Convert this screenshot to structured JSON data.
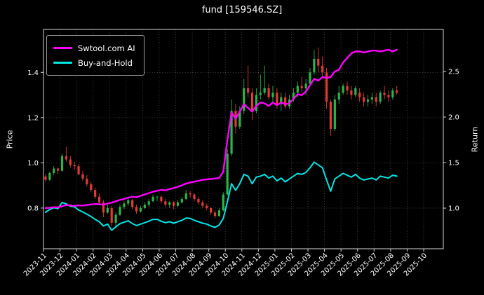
{
  "title": "fund [159546.SZ]",
  "axes": {
    "left_label": "Price",
    "right_label": "Return",
    "left_ticks": [
      "0.8",
      "1.0",
      "1.2",
      "1.4"
    ],
    "left_tick_values": [
      0.8,
      1.0,
      1.2,
      1.4
    ],
    "right_ticks": [
      "1.0",
      "1.5",
      "2.0",
      "2.5"
    ],
    "right_tick_values": [
      1.0,
      1.5,
      2.0,
      2.5
    ],
    "left_range": [
      0.62,
      1.59
    ],
    "right_range": [
      0.554,
      2.962
    ],
    "x_ticks": [
      "2023-11",
      "2023-12",
      "2024-01",
      "2024-02",
      "2024-03",
      "2024-04",
      "2024-05",
      "2024-06",
      "2024-07",
      "2024-08",
      "2024-09",
      "2024-10",
      "2024-11",
      "2024-12",
      "2025-01",
      "2025-02",
      "2025-03",
      "2025-04",
      "2025-05",
      "2025-06",
      "2025-07",
      "2025-08",
      "2025-09",
      "2025-10"
    ]
  },
  "legend": {
    "items": [
      {
        "label": "Swtool.com AI",
        "color": "#ff00ff"
      },
      {
        "label": "Buy-and-Hold",
        "color": "#00e5e5"
      }
    ]
  },
  "colors": {
    "background": "#000000",
    "text": "#ffffff",
    "grid": "#8c8c8c",
    "spine": "#d9d9d9",
    "candle_up": "#2db448",
    "candle_down": "#e23a34"
  },
  "chart_data": {
    "type": "candlestick+line",
    "title": "fund [159546.SZ]",
    "xlabel": "",
    "ylabel_left": "Price",
    "ylabel_right": "Return",
    "x_start": "2023-11",
    "x_end_data": "2025-08",
    "x_axis_end": "2025-10",
    "points_per_month": 4,
    "grid": "dotted",
    "legend_position": "upper left",
    "left_axis_range": [
      0.62,
      1.59
    ],
    "right_axis_range": [
      0.554,
      2.962
    ],
    "candles_ohlc": [
      [
        0.94,
        0.95,
        0.915,
        0.925
      ],
      [
        0.925,
        0.96,
        0.92,
        0.955
      ],
      [
        0.955,
        0.985,
        0.945,
        0.975
      ],
      [
        0.975,
        0.98,
        0.95,
        0.965
      ],
      [
        0.965,
        1.04,
        0.96,
        1.03
      ],
      [
        1.03,
        1.07,
        1.005,
        1.015
      ],
      [
        1.015,
        1.03,
        0.98,
        0.99
      ],
      [
        0.99,
        1.005,
        0.97,
        0.985
      ],
      [
        0.985,
        0.995,
        0.945,
        0.95
      ],
      [
        0.95,
        0.965,
        0.92,
        0.93
      ],
      [
        0.93,
        0.945,
        0.895,
        0.905
      ],
      [
        0.905,
        0.915,
        0.87,
        0.88
      ],
      [
        0.88,
        0.89,
        0.84,
        0.85
      ],
      [
        0.85,
        0.865,
        0.815,
        0.825
      ],
      [
        0.825,
        0.835,
        0.76,
        0.78
      ],
      [
        0.78,
        0.815,
        0.775,
        0.8
      ],
      [
        0.8,
        0.81,
        0.72,
        0.735
      ],
      [
        0.735,
        0.78,
        0.715,
        0.77
      ],
      [
        0.77,
        0.815,
        0.765,
        0.805
      ],
      [
        0.805,
        0.83,
        0.795,
        0.82
      ],
      [
        0.82,
        0.845,
        0.81,
        0.835
      ],
      [
        0.835,
        0.84,
        0.795,
        0.805
      ],
      [
        0.805,
        0.815,
        0.775,
        0.785
      ],
      [
        0.785,
        0.81,
        0.78,
        0.8
      ],
      [
        0.8,
        0.825,
        0.795,
        0.815
      ],
      [
        0.815,
        0.84,
        0.805,
        0.83
      ],
      [
        0.83,
        0.86,
        0.825,
        0.85
      ],
      [
        0.85,
        0.855,
        0.83,
        0.85
      ],
      [
        0.85,
        0.855,
        0.82,
        0.83
      ],
      [
        0.83,
        0.84,
        0.805,
        0.815
      ],
      [
        0.815,
        0.83,
        0.8,
        0.825
      ],
      [
        0.825,
        0.83,
        0.795,
        0.81
      ],
      [
        0.81,
        0.835,
        0.805,
        0.825
      ],
      [
        0.825,
        0.85,
        0.82,
        0.84
      ],
      [
        0.84,
        0.88,
        0.835,
        0.865
      ],
      [
        0.865,
        0.875,
        0.845,
        0.86
      ],
      [
        0.86,
        0.865,
        0.83,
        0.84
      ],
      [
        0.84,
        0.85,
        0.815,
        0.825
      ],
      [
        0.825,
        0.835,
        0.8,
        0.81
      ],
      [
        0.81,
        0.82,
        0.79,
        0.8
      ],
      [
        0.8,
        0.805,
        0.77,
        0.78
      ],
      [
        0.78,
        0.79,
        0.755,
        0.765
      ],
      [
        0.765,
        0.8,
        0.76,
        0.79
      ],
      [
        0.79,
        0.87,
        0.785,
        0.86
      ],
      [
        0.86,
        1.06,
        0.855,
        1.04
      ],
      [
        1.04,
        1.28,
        1.03,
        1.23
      ],
      [
        1.23,
        1.26,
        1.13,
        1.16
      ],
      [
        1.16,
        1.25,
        1.15,
        1.23
      ],
      [
        1.23,
        1.37,
        1.215,
        1.33
      ],
      [
        1.33,
        1.43,
        1.29,
        1.31
      ],
      [
        1.31,
        1.33,
        1.19,
        1.23
      ],
      [
        1.23,
        1.33,
        1.22,
        1.3
      ],
      [
        1.3,
        1.39,
        1.28,
        1.31
      ],
      [
        1.31,
        1.43,
        1.3,
        1.33
      ],
      [
        1.33,
        1.35,
        1.28,
        1.29
      ],
      [
        1.29,
        1.34,
        1.27,
        1.31
      ],
      [
        1.31,
        1.33,
        1.24,
        1.26
      ],
      [
        1.26,
        1.31,
        1.23,
        1.29
      ],
      [
        1.29,
        1.31,
        1.24,
        1.25
      ],
      [
        1.25,
        1.3,
        1.24,
        1.28
      ],
      [
        1.28,
        1.33,
        1.27,
        1.31
      ],
      [
        1.31,
        1.36,
        1.29,
        1.34
      ],
      [
        1.34,
        1.38,
        1.31,
        1.33
      ],
      [
        1.33,
        1.37,
        1.3,
        1.35
      ],
      [
        1.35,
        1.42,
        1.34,
        1.4
      ],
      [
        1.4,
        1.5,
        1.39,
        1.46
      ],
      [
        1.46,
        1.51,
        1.4,
        1.43
      ],
      [
        1.43,
        1.47,
        1.38,
        1.4
      ],
      [
        1.4,
        1.42,
        1.24,
        1.27
      ],
      [
        1.27,
        1.28,
        1.12,
        1.15
      ],
      [
        1.15,
        1.3,
        1.14,
        1.28
      ],
      [
        1.28,
        1.34,
        1.26,
        1.31
      ],
      [
        1.31,
        1.35,
        1.3,
        1.34
      ],
      [
        1.34,
        1.36,
        1.3,
        1.32
      ],
      [
        1.32,
        1.34,
        1.28,
        1.3
      ],
      [
        1.3,
        1.34,
        1.29,
        1.33
      ],
      [
        1.31,
        1.33,
        1.27,
        1.29
      ],
      [
        1.29,
        1.31,
        1.25,
        1.27
      ],
      [
        1.27,
        1.3,
        1.25,
        1.28
      ],
      [
        1.28,
        1.31,
        1.26,
        1.29
      ],
      [
        1.29,
        1.31,
        1.25,
        1.27
      ],
      [
        1.27,
        1.32,
        1.26,
        1.31
      ],
      [
        1.31,
        1.34,
        1.28,
        1.3
      ],
      [
        1.3,
        1.32,
        1.27,
        1.29
      ],
      [
        1.29,
        1.33,
        1.28,
        1.32
      ],
      [
        1.32,
        1.34,
        1.3,
        1.31
      ]
    ],
    "series": [
      {
        "name": "Swtool.com AI",
        "axis": "right",
        "color": "#ff00ff",
        "width": 2.4,
        "values": [
          1.0,
          1.005,
          1.01,
          1.008,
          1.02,
          1.035,
          1.03,
          1.025,
          1.03,
          1.028,
          1.035,
          1.04,
          1.045,
          1.042,
          1.038,
          1.05,
          1.06,
          1.075,
          1.09,
          1.1,
          1.115,
          1.125,
          1.12,
          1.135,
          1.15,
          1.165,
          1.18,
          1.19,
          1.2,
          1.195,
          1.21,
          1.22,
          1.235,
          1.25,
          1.27,
          1.28,
          1.29,
          1.3,
          1.31,
          1.315,
          1.32,
          1.325,
          1.33,
          1.4,
          1.75,
          2.05,
          1.98,
          2.06,
          2.14,
          2.1,
          2.06,
          2.12,
          2.16,
          2.15,
          2.12,
          2.16,
          2.13,
          2.16,
          2.14,
          2.15,
          2.2,
          2.25,
          2.24,
          2.28,
          2.35,
          2.42,
          2.4,
          2.44,
          2.43,
          2.44,
          2.5,
          2.52,
          2.6,
          2.65,
          2.7,
          2.72,
          2.72,
          2.71,
          2.72,
          2.73,
          2.73,
          2.72,
          2.73,
          2.74,
          2.72,
          2.74
        ]
      },
      {
        "name": "Buy-and-Hold",
        "axis": "right",
        "color": "#00e5e5",
        "width": 2.0,
        "values": [
          0.954,
          0.985,
          1.005,
          0.995,
          1.062,
          1.046,
          1.021,
          1.015,
          0.979,
          0.959,
          0.933,
          0.907,
          0.876,
          0.851,
          0.804,
          0.825,
          0.758,
          0.794,
          0.83,
          0.845,
          0.861,
          0.83,
          0.809,
          0.825,
          0.84,
          0.856,
          0.876,
          0.876,
          0.856,
          0.84,
          0.851,
          0.835,
          0.851,
          0.866,
          0.892,
          0.887,
          0.866,
          0.851,
          0.835,
          0.825,
          0.804,
          0.789,
          0.814,
          0.887,
          1.072,
          1.268,
          1.196,
          1.268,
          1.371,
          1.351,
          1.268,
          1.34,
          1.351,
          1.371,
          1.33,
          1.351,
          1.299,
          1.33,
          1.289,
          1.32,
          1.351,
          1.381,
          1.371,
          1.392,
          1.443,
          1.505,
          1.474,
          1.443,
          1.309,
          1.186,
          1.32,
          1.351,
          1.381,
          1.361,
          1.34,
          1.371,
          1.33,
          1.309,
          1.32,
          1.33,
          1.309,
          1.351,
          1.34,
          1.33,
          1.361,
          1.351
        ]
      }
    ]
  }
}
